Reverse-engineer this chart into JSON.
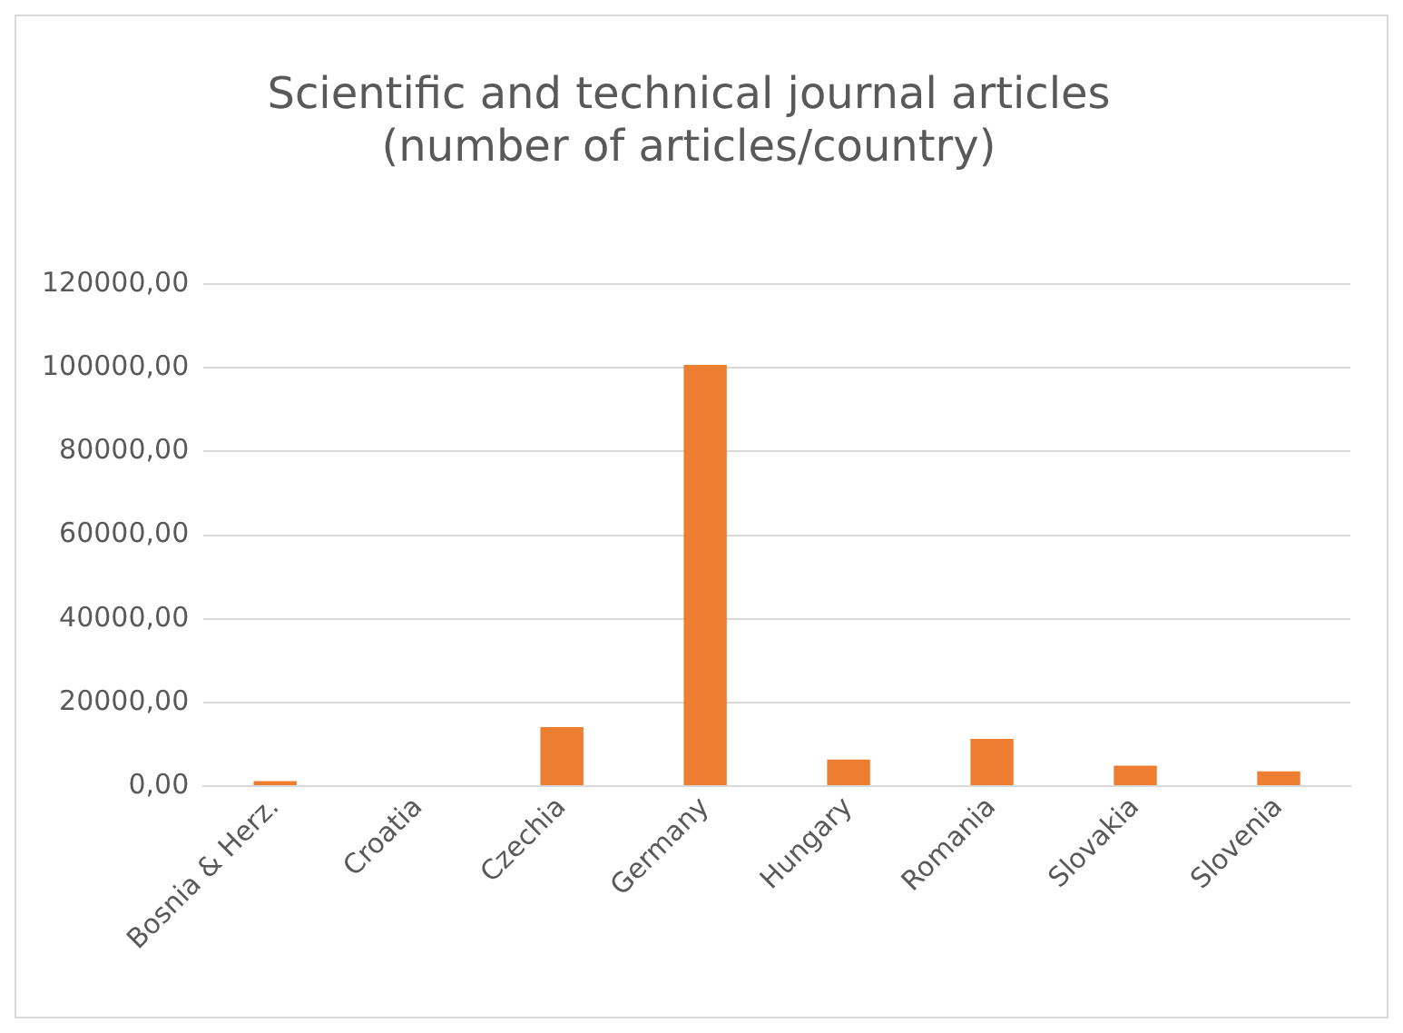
{
  "chart_data": {
    "type": "bar",
    "title": [
      "Scientific and technical journal articles",
      "(number of articles/country)"
    ],
    "categories": [
      "Bosnia & Herz.",
      "Croatia",
      "Czechia",
      "Germany",
      "Hungary",
      "Romania",
      "Slovakia",
      "Slovenia"
    ],
    "values": [
      1200,
      null,
      14100,
      100700,
      6350,
      11300,
      4900,
      3500
    ],
    "color": "#ed7d31",
    "ylim": [
      0,
      120000
    ],
    "yticks": [
      {
        "value": 0,
        "label": "0,00"
      },
      {
        "value": 20000,
        "label": "20000,00"
      },
      {
        "value": 40000,
        "label": "40000,00"
      },
      {
        "value": 60000,
        "label": "60000,00"
      },
      {
        "value": 80000,
        "label": "80000,00"
      },
      {
        "value": 100000,
        "label": "100000,00"
      },
      {
        "value": 120000,
        "label": "120000,00"
      }
    ],
    "grid": "y",
    "legend": false
  }
}
